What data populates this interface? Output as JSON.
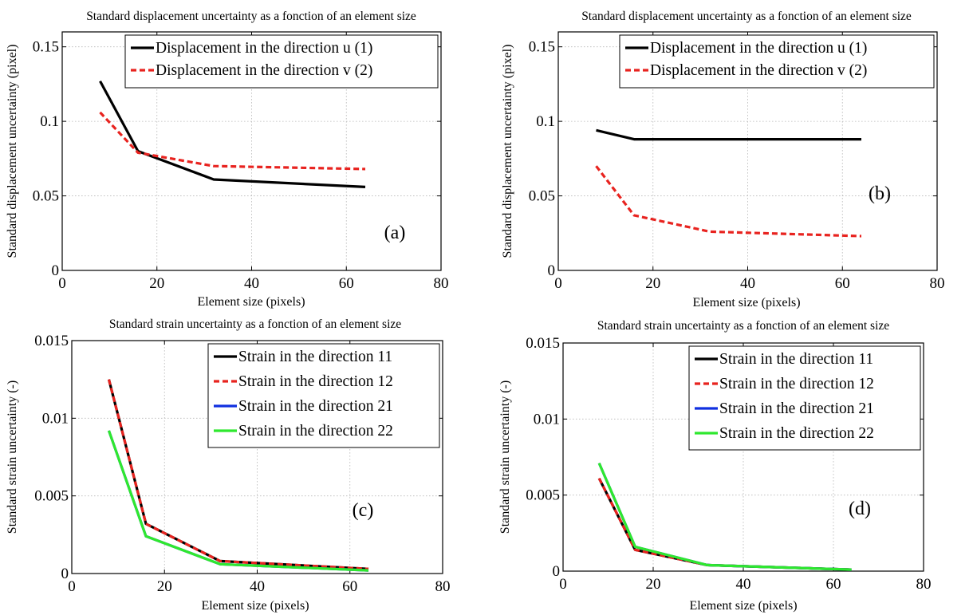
{
  "chart_data": [
    {
      "id": "a",
      "type": "line",
      "title": "Standard displacement uncertainty as a fonction of an element size",
      "xlabel": "Element size (pixels)",
      "ylabel": "Standard displacement uncertainty (pixel)",
      "xlim": [
        0,
        80
      ],
      "ylim": [
        0,
        0.16
      ],
      "xticks": [
        0,
        20,
        40,
        60,
        80
      ],
      "xtick_labels": [
        "0",
        "20",
        "40",
        "60",
        "80"
      ],
      "yticks": [
        0,
        0.05,
        0.1,
        0.15
      ],
      "ytick_labels": [
        "0",
        "0.05",
        "0.1",
        "0.15"
      ],
      "grid": true,
      "legend_position": "top-right",
      "panel_label": "(a)",
      "series": [
        {
          "name": "Displacement in the direction u (1)",
          "color": "#000000",
          "style": "solid",
          "x": [
            8,
            16,
            32,
            64
          ],
          "y": [
            0.127,
            0.08,
            0.061,
            0.056
          ]
        },
        {
          "name": "Displacement in the direction v (2)",
          "color": "#e8231f",
          "style": "dashed",
          "x": [
            8,
            16,
            32,
            64
          ],
          "y": [
            0.106,
            0.079,
            0.07,
            0.068
          ]
        }
      ]
    },
    {
      "id": "b",
      "type": "line",
      "title": "Standard displacement uncertainty as a fonction of an element size",
      "xlabel": "Element size (pixels)",
      "ylabel": "Standard displacement uncertainty (pixel)",
      "xlim": [
        0,
        80
      ],
      "ylim": [
        0,
        0.16
      ],
      "xticks": [
        0,
        20,
        40,
        60,
        80
      ],
      "xtick_labels": [
        "0",
        "20",
        "40",
        "60",
        "80"
      ],
      "yticks": [
        0,
        0.05,
        0.1,
        0.15
      ],
      "ytick_labels": [
        "0",
        "0.05",
        "0.1",
        "0.15"
      ],
      "grid": true,
      "legend_position": "top-right",
      "panel_label": "(b)",
      "series": [
        {
          "name": "Displacement in the direction u (1)",
          "color": "#000000",
          "style": "solid",
          "x": [
            8,
            16,
            32,
            64
          ],
          "y": [
            0.094,
            0.088,
            0.088,
            0.088
          ]
        },
        {
          "name": "Displacement in the direction v (2)",
          "color": "#e8231f",
          "style": "dashed",
          "x": [
            8,
            16,
            32,
            64
          ],
          "y": [
            0.07,
            0.037,
            0.026,
            0.023
          ]
        }
      ]
    },
    {
      "id": "c",
      "type": "line",
      "title": "Standard strain uncertainty as a fonction of an element size",
      "xlabel": "Element size (pixels)",
      "ylabel": "Standard strain uncertainty (-)",
      "xlim": [
        0,
        80
      ],
      "ylim": [
        0,
        0.015
      ],
      "xticks": [
        0,
        20,
        40,
        60,
        80
      ],
      "xtick_labels": [
        "0",
        "20",
        "40",
        "60",
        "80"
      ],
      "yticks": [
        0,
        0.005,
        0.01,
        0.015
      ],
      "ytick_labels": [
        "0",
        "0.005",
        "0.01",
        "0.015"
      ],
      "grid": true,
      "legend_position": "top-right",
      "panel_label": "(c)",
      "series": [
        {
          "name": "Strain in the direction 11",
          "color": "#000000",
          "style": "solid",
          "x": [
            8,
            16,
            32,
            64
          ],
          "y": [
            0.0125,
            0.0032,
            0.0008,
            0.0003
          ]
        },
        {
          "name": "Strain in the direction 12",
          "color": "#e8231f",
          "style": "dashed",
          "x": [
            8,
            16,
            32,
            64
          ],
          "y": [
            0.0125,
            0.0032,
            0.0008,
            0.0003
          ]
        },
        {
          "name": "Strain in the direction 21",
          "color": "#1030e0",
          "style": "solid",
          "x": [
            8,
            16,
            32,
            64
          ],
          "y": [
            0.0092,
            0.0024,
            0.0006,
            0.0002
          ]
        },
        {
          "name": "Strain in the direction 22",
          "color": "#2ee82e",
          "style": "solid",
          "x": [
            8,
            16,
            32,
            64
          ],
          "y": [
            0.0092,
            0.0024,
            0.0006,
            0.0002
          ]
        }
      ]
    },
    {
      "id": "d",
      "type": "line",
      "title": "Standard strain uncertainty as a fonction of an element size",
      "xlabel": "Element size (pixels)",
      "ylabel": "Standard strain uncertainty (-)",
      "xlim": [
        0,
        80
      ],
      "ylim": [
        0,
        0.015
      ],
      "xticks": [
        0,
        20,
        40,
        60,
        80
      ],
      "xtick_labels": [
        "0",
        "20",
        "40",
        "60",
        "80"
      ],
      "yticks": [
        0,
        0.005,
        0.01,
        0.015
      ],
      "ytick_labels": [
        "0",
        "0.005",
        "0.01",
        "0.015"
      ],
      "grid": true,
      "legend_position": "top-right",
      "panel_label": "(d)",
      "series": [
        {
          "name": "Strain in the direction 11",
          "color": "#000000",
          "style": "solid",
          "x": [
            8,
            16,
            32,
            64
          ],
          "y": [
            0.0061,
            0.0014,
            0.0004,
            0.0001
          ]
        },
        {
          "name": "Strain in the direction 12",
          "color": "#e8231f",
          "style": "dashed",
          "x": [
            8,
            16,
            32,
            64
          ],
          "y": [
            0.0061,
            0.0014,
            0.0004,
            0.0001
          ]
        },
        {
          "name": "Strain in the direction 21",
          "color": "#1030e0",
          "style": "solid",
          "x": [
            8,
            16,
            32,
            64
          ],
          "y": [
            0.0071,
            0.0016,
            0.0004,
            0.0001
          ]
        },
        {
          "name": "Strain in the direction 22",
          "color": "#2ee82e",
          "style": "solid",
          "x": [
            8,
            16,
            32,
            64
          ],
          "y": [
            0.0071,
            0.0016,
            0.0004,
            0.0001
          ]
        }
      ]
    }
  ]
}
